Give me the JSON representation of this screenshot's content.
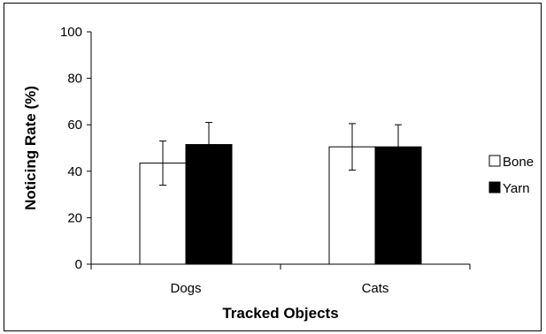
{
  "chart_data": {
    "type": "bar",
    "title": "",
    "xlabel": "Tracked Objects",
    "ylabel": "Noticing Rate (%)",
    "ylim": [
      0,
      100
    ],
    "yticks": [
      0,
      20,
      40,
      60,
      80,
      100
    ],
    "categories": [
      "Dogs",
      "Cats"
    ],
    "series": [
      {
        "name": "Bone",
        "color": "#ffffff",
        "values": [
          43.5,
          50.5
        ],
        "error": [
          9.5,
          10
        ]
      },
      {
        "name": "Yarn",
        "color": "#000000",
        "values": [
          51.5,
          50.5
        ],
        "error": [
          9.5,
          9.5
        ]
      }
    ],
    "legend": {
      "position": "right"
    },
    "grid": false
  }
}
